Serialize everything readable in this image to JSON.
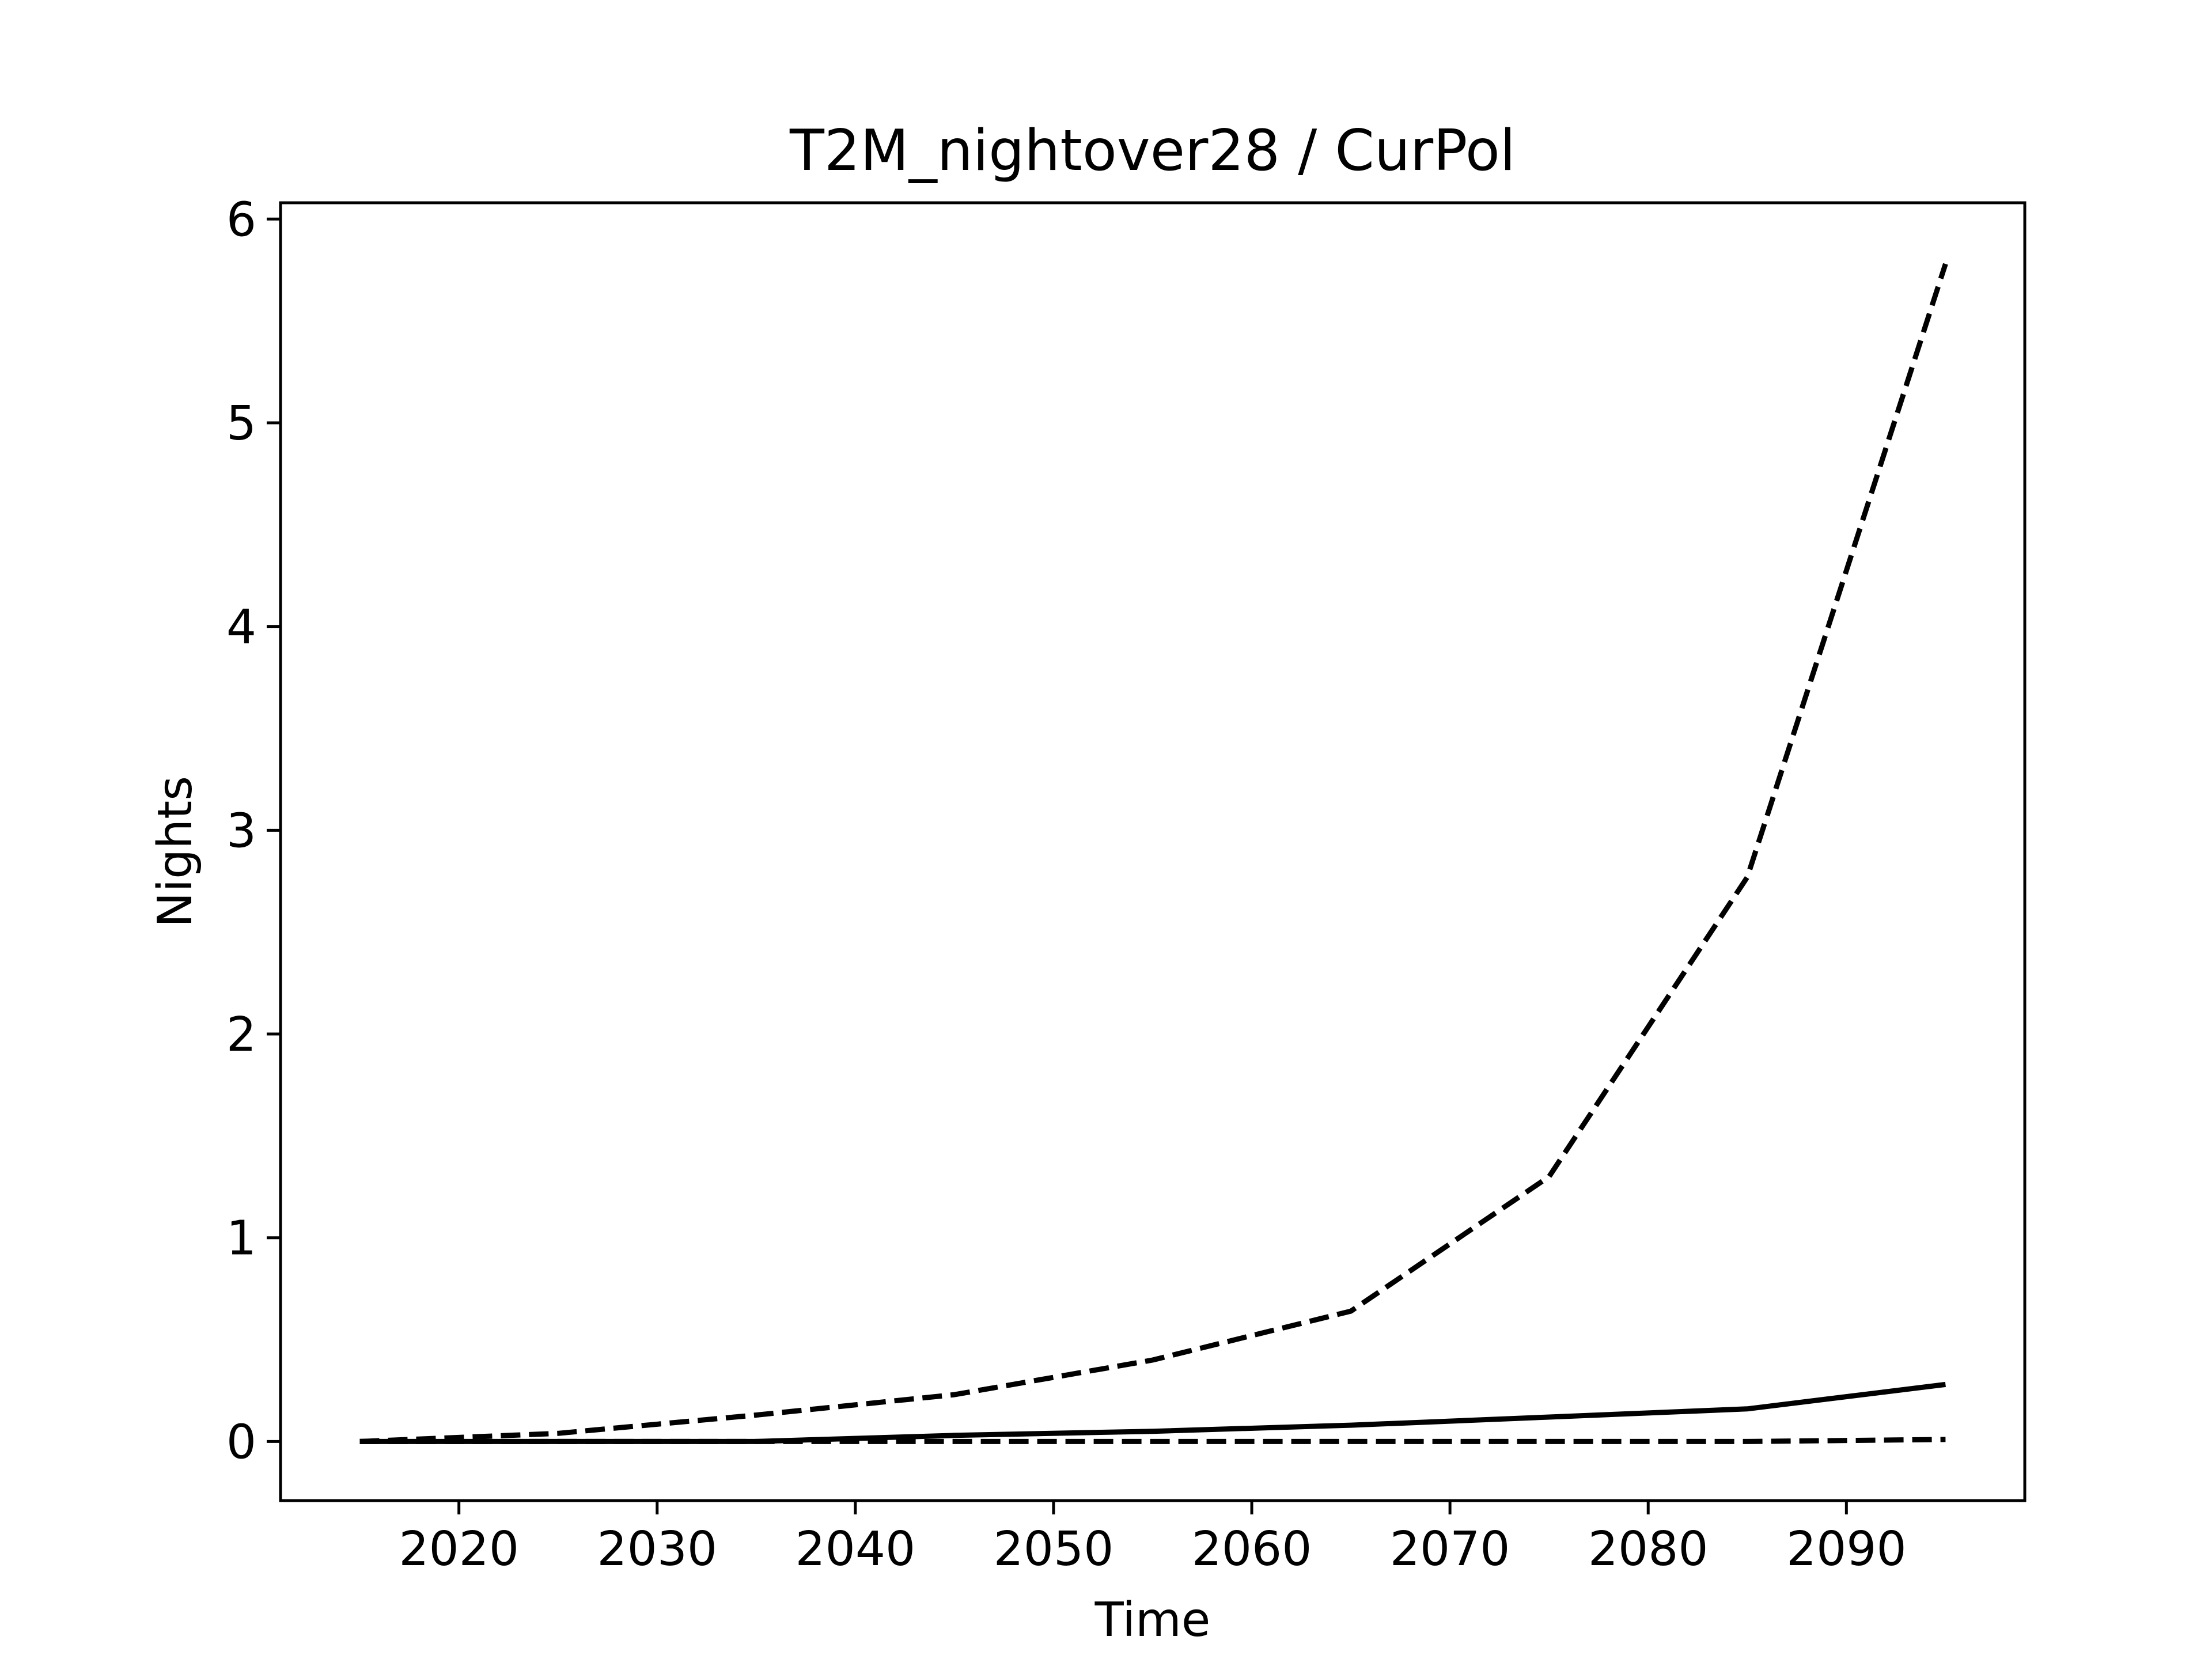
{
  "chart_data": {
    "type": "line",
    "title": "T2M_nightover28 / CurPol",
    "xlabel": "Time",
    "ylabel": "Nights",
    "xlim": [
      2011,
      2099
    ],
    "ylim": [
      -0.29,
      6.08
    ],
    "xticks": [
      2020,
      2030,
      2040,
      2050,
      2060,
      2070,
      2080,
      2090
    ],
    "yticks": [
      0,
      1,
      2,
      3,
      4,
      5,
      6
    ],
    "grid": false,
    "legend": "none",
    "x": [
      2015,
      2025,
      2035,
      2045,
      2055,
      2065,
      2075,
      2085,
      2095
    ],
    "series": [
      {
        "values": [
          0.0,
          0.04,
          0.13,
          0.23,
          0.4,
          0.64,
          1.3,
          2.77,
          5.78
        ],
        "style": "dashed",
        "color": "#000000"
      },
      {
        "values": [
          0.0,
          0.0,
          0.0,
          0.03,
          0.05,
          0.08,
          0.12,
          0.16,
          0.28
        ],
        "style": "solid",
        "color": "#000000"
      },
      {
        "values": [
          0.0,
          0.0,
          0.0,
          0.0,
          0.0,
          0.0,
          0.0,
          0.0,
          0.01
        ],
        "style": "dashed",
        "color": "#000000"
      }
    ]
  }
}
